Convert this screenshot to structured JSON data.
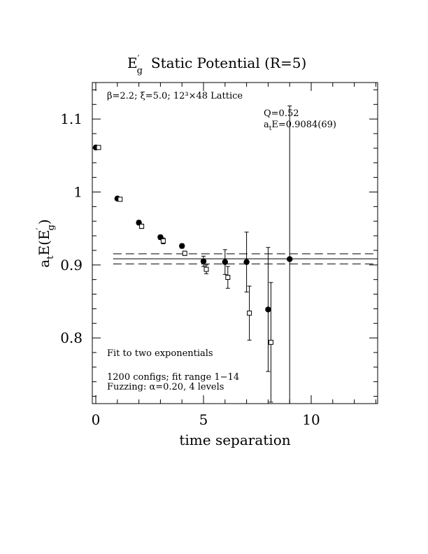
{
  "chart_data": {
    "type": "scatter",
    "title_main": "E",
    "title_sup": "′",
    "title_sub": "g",
    "title_rest": "Static Potential (R=5)",
    "xlabel": "time separation",
    "ylabel_main": "a",
    "ylabel_sub": "t",
    "ylabel_rest1": "E(E",
    "ylabel_sup": "′",
    "ylabel_sub2": "g",
    "ylabel_rest2": ")",
    "xlim": [
      0,
      13
    ],
    "ylim": [
      0.71,
      1.15
    ],
    "x_major_ticks": [
      0,
      5,
      10
    ],
    "x_tick_labels": [
      "0",
      "5",
      "10"
    ],
    "y_major_ticks": [
      0.8,
      0.9,
      1.0,
      1.1
    ],
    "y_tick_labels": [
      "0.8",
      "0.9",
      "1",
      "1.1"
    ],
    "annotation_lattice": "β=2.2; ξ=5.0; 12³×48 Lattice",
    "annotation_q": "Q=0.52",
    "annotation_ate_main": "a",
    "annotation_ate_sub": "t",
    "annotation_ate_rest": "E=0.9084(69)",
    "annotation_fit": "Fit to two exponentials",
    "annotation_configs": "1200 configs; fit range 1−14",
    "annotation_fuzzing": "Fuzzing: α=0.20, 4 levels",
    "fit": {
      "value": 0.9084,
      "error": 0.0069,
      "x_start": 1,
      "x_end": 13
    },
    "series": [
      {
        "marker": "filled-circle",
        "points": [
          {
            "x": 0,
            "y": 1.061,
            "err": 0.002
          },
          {
            "x": 1,
            "y": 0.991,
            "err": 0.002
          },
          {
            "x": 2,
            "y": 0.958,
            "err": 0.003
          },
          {
            "x": 3,
            "y": 0.938,
            "err": 0.003
          },
          {
            "x": 4,
            "y": 0.926,
            "err": 0.003
          },
          {
            "x": 5,
            "y": 0.905,
            "err": 0.007
          },
          {
            "x": 6,
            "y": 0.904,
            "err": 0.017
          },
          {
            "x": 7,
            "y": 0.904,
            "err": 0.041
          },
          {
            "x": 8,
            "y": 0.839,
            "err": 0.085
          },
          {
            "x": 9,
            "y": 0.908,
            "err": 0.21
          }
        ]
      },
      {
        "marker": "open-square",
        "points": [
          {
            "x": 0,
            "y": 1.061,
            "err": 0.002
          },
          {
            "x": 1,
            "y": 0.99,
            "err": 0.002
          },
          {
            "x": 2,
            "y": 0.953,
            "err": 0.003
          },
          {
            "x": 3,
            "y": 0.933,
            "err": 0.004
          },
          {
            "x": 4,
            "y": 0.916,
            "err": 0.003
          },
          {
            "x": 5,
            "y": 0.894,
            "err": 0.006
          },
          {
            "x": 6,
            "y": 0.883,
            "err": 0.015
          },
          {
            "x": 7,
            "y": 0.834,
            "err": 0.037
          },
          {
            "x": 8,
            "y": 0.794,
            "err": 0.082
          }
        ]
      }
    ]
  }
}
